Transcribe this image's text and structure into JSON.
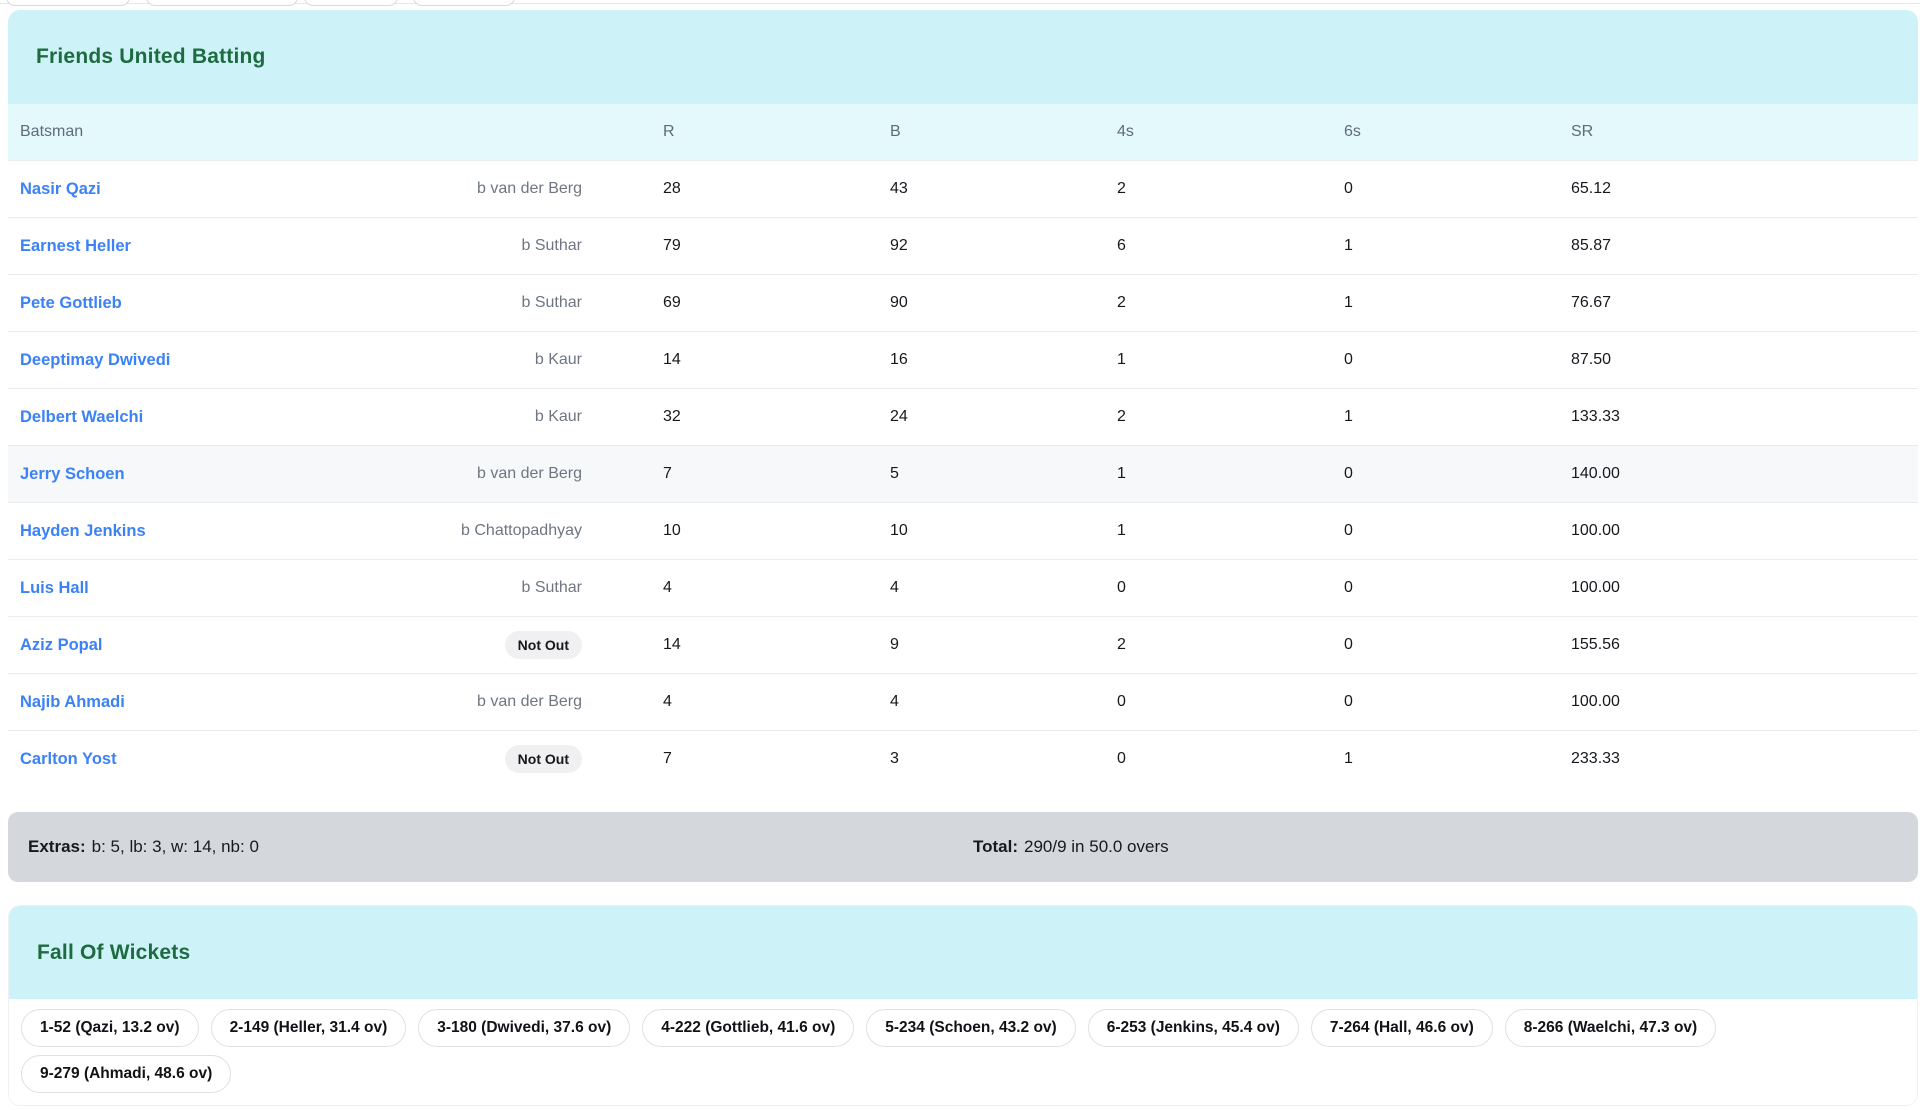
{
  "theme": {
    "header_teal": "#cdf3f8",
    "table_head_teal": "#e4f9fc",
    "title_green": "#1e6b41",
    "link_blue": "#3b82f6",
    "extras_bar_gray": "#d4d8dd"
  },
  "batting": {
    "title": "Friends United Batting",
    "columns": [
      "Batsman",
      "R",
      "B",
      "4s",
      "6s",
      "SR"
    ],
    "not_out_label": "Not Out",
    "rows": [
      {
        "name": "Nasir Qazi",
        "dismissal": "b van der Berg",
        "not_out": false,
        "r": "28",
        "b": "43",
        "fours": "2",
        "sixes": "0",
        "sr": "65.12",
        "highlight": false
      },
      {
        "name": "Earnest Heller",
        "dismissal": "b Suthar",
        "not_out": false,
        "r": "79",
        "b": "92",
        "fours": "6",
        "sixes": "1",
        "sr": "85.87",
        "highlight": false
      },
      {
        "name": "Pete Gottlieb",
        "dismissal": "b Suthar",
        "not_out": false,
        "r": "69",
        "b": "90",
        "fours": "2",
        "sixes": "1",
        "sr": "76.67",
        "highlight": false
      },
      {
        "name": "Deeptimay Dwivedi",
        "dismissal": "b Kaur",
        "not_out": false,
        "r": "14",
        "b": "16",
        "fours": "1",
        "sixes": "0",
        "sr": "87.50",
        "highlight": false
      },
      {
        "name": "Delbert Waelchi",
        "dismissal": "b Kaur",
        "not_out": false,
        "r": "32",
        "b": "24",
        "fours": "2",
        "sixes": "1",
        "sr": "133.33",
        "highlight": false
      },
      {
        "name": "Jerry Schoen",
        "dismissal": "b van der Berg",
        "not_out": false,
        "r": "7",
        "b": "5",
        "fours": "1",
        "sixes": "0",
        "sr": "140.00",
        "highlight": true
      },
      {
        "name": "Hayden Jenkins",
        "dismissal": "b Chattopadhyay",
        "not_out": false,
        "r": "10",
        "b": "10",
        "fours": "1",
        "sixes": "0",
        "sr": "100.00",
        "highlight": false
      },
      {
        "name": "Luis Hall",
        "dismissal": "b Suthar",
        "not_out": false,
        "r": "4",
        "b": "4",
        "fours": "0",
        "sixes": "0",
        "sr": "100.00",
        "highlight": false
      },
      {
        "name": "Aziz Popal",
        "dismissal": "",
        "not_out": true,
        "r": "14",
        "b": "9",
        "fours": "2",
        "sixes": "0",
        "sr": "155.56",
        "highlight": false
      },
      {
        "name": "Najib Ahmadi",
        "dismissal": "b van der Berg",
        "not_out": false,
        "r": "4",
        "b": "4",
        "fours": "0",
        "sixes": "0",
        "sr": "100.00",
        "highlight": false
      },
      {
        "name": "Carlton Yost",
        "dismissal": "",
        "not_out": true,
        "r": "7",
        "b": "3",
        "fours": "0",
        "sixes": "1",
        "sr": "233.33",
        "highlight": false
      }
    ]
  },
  "summary": {
    "extras_label": "Extras:",
    "extras_value": "b: 5, lb: 3, w: 14, nb: 0",
    "total_label": "Total:",
    "total_value": "290/9 in 50.0 overs"
  },
  "fall_of_wickets": {
    "title": "Fall Of Wickets",
    "chips": [
      "1-52 (Qazi, 13.2 ov)",
      "2-149 (Heller, 31.4 ov)",
      "3-180 (Dwivedi, 37.6 ov)",
      "4-222 (Gottlieb, 41.6 ov)",
      "5-234 (Schoen, 43.2 ov)",
      "6-253 (Jenkins, 45.4 ov)",
      "7-264 (Hall, 46.6 ov)",
      "8-266 (Waelchi, 47.3 ov)",
      "9-279 (Ahmadi, 48.6 ov)"
    ]
  }
}
